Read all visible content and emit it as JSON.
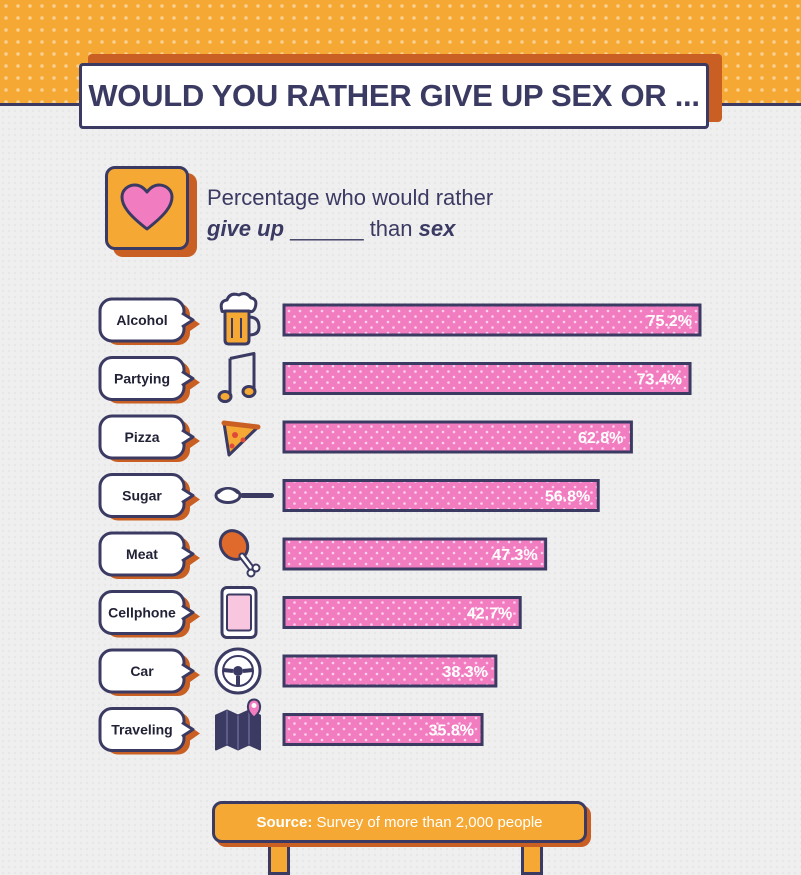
{
  "header": {
    "title": "WOULD YOU RATHER GIVE UP SEX OR ..."
  },
  "intro": {
    "line1": "Percentage who would rather",
    "give_up": "give up",
    "blank": "______",
    "than": "than",
    "sex": "sex"
  },
  "colors": {
    "orange": "#f5a934",
    "dark_orange": "#c95f23",
    "navy": "#3b3a63",
    "pink": "#f27cc0",
    "background": "#efefef"
  },
  "chart_data": {
    "type": "bar",
    "orientation": "horizontal",
    "categories": [
      "Alcohol",
      "Partying",
      "Pizza",
      "Sugar",
      "Meat",
      "Cellphone",
      "Car",
      "Traveling"
    ],
    "icons": [
      "beer-mug-icon",
      "music-note-icon",
      "pizza-slice-icon",
      "sugar-spoon-icon",
      "chicken-leg-icon",
      "smartphone-icon",
      "steering-wheel-icon",
      "map-pin-icon"
    ],
    "values": [
      75.2,
      73.4,
      62.8,
      56.8,
      47.3,
      42.7,
      38.3,
      35.8
    ],
    "value_labels": [
      "75.2%",
      "73.4%",
      "62.8%",
      "56.8%",
      "47.3%",
      "42.7%",
      "38.3%",
      "35.8%"
    ],
    "xlim": [
      0,
      100
    ],
    "grid": false,
    "legend": "none"
  },
  "footer": {
    "source_label": "Source:",
    "source_text": "Survey of more than 2,000 people"
  }
}
